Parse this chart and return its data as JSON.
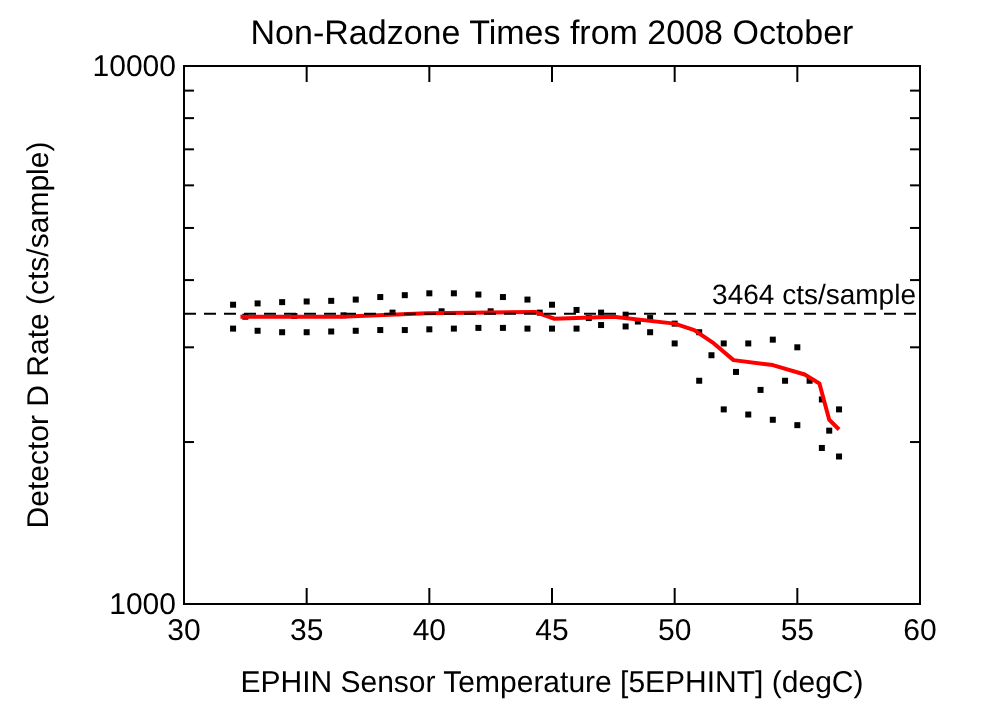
{
  "chart_data": {
    "type": "scatter",
    "title": "Non-Radzone Times from 2008 October",
    "xlabel": "EPHIN Sensor Temperature [5EPHINT] (degC)",
    "ylabel": "Detector D Rate (cts/sample)",
    "xlim": [
      30,
      60
    ],
    "xticks": [
      30,
      35,
      40,
      45,
      50,
      55,
      60
    ],
    "ylim": [
      1000,
      10000
    ],
    "log": true,
    "yticks": [
      1000,
      {
        "value": 2000,
        "label": null
      },
      {
        "value": 3000,
        "label": null
      },
      {
        "value": 4000,
        "label": null
      },
      {
        "value": 5000,
        "label": null
      },
      {
        "value": 6000,
        "label": null
      },
      {
        "value": 7000,
        "label": null
      },
      {
        "value": 8000,
        "label": null
      },
      {
        "value": 9000,
        "label": null
      },
      10000
    ],
    "marker": "square",
    "grid": false,
    "series": [
      {
        "color": "#000000",
        "x": [
          32,
          33,
          34,
          35,
          36,
          37,
          38,
          39,
          40,
          41,
          42,
          43,
          44,
          45,
          46,
          47,
          48,
          49,
          50,
          51,
          52,
          53,
          54,
          55,
          56,
          56.7,
          32,
          33,
          34,
          35,
          36,
          37,
          38,
          39,
          40,
          41,
          42,
          43,
          44,
          45,
          46,
          47,
          48,
          49,
          50,
          51,
          52,
          53,
          54,
          55,
          56,
          56.7,
          32.5,
          34.5,
          36.5,
          38.5,
          40.5,
          42.5,
          44.5,
          46.5,
          48.5,
          51.5,
          52.5,
          53.5,
          54.5,
          55.5,
          56.3
        ],
        "values": [
          3600,
          3620,
          3640,
          3650,
          3660,
          3680,
          3720,
          3750,
          3780,
          3780,
          3760,
          3720,
          3680,
          3600,
          3520,
          3480,
          3450,
          3400,
          3320,
          3200,
          3050,
          3050,
          3100,
          3000,
          2400,
          2300,
          3250,
          3220,
          3200,
          3200,
          3210,
          3220,
          3230,
          3230,
          3240,
          3250,
          3260,
          3260,
          3250,
          3250,
          3250,
          3300,
          3280,
          3200,
          3050,
          2600,
          2300,
          2250,
          2200,
          2150,
          1950,
          1880,
          3420,
          3430,
          3440,
          3480,
          3500,
          3500,
          3480,
          3400,
          3350,
          2900,
          2700,
          2500,
          2600,
          2600,
          2100
        ]
      },
      {
        "type": "line",
        "color": "#ff0000",
        "marker": "none",
        "x": [
          32.3,
          36.4,
          39.9,
          44.3,
          45.1,
          47.5,
          50.0,
          50.8,
          51.6,
          52.4,
          54.0,
          55.3,
          55.9,
          56.3,
          56.7
        ],
        "values": [
          3420,
          3420,
          3470,
          3490,
          3390,
          3420,
          3320,
          3230,
          3050,
          2840,
          2780,
          2670,
          2570,
          2200,
          2110
        ]
      }
    ],
    "ref_lines": [
      {
        "axis": "y",
        "value": 3464,
        "label": "3464 cts/sample",
        "color": "#000000",
        "line_style": "dashed"
      }
    ]
  }
}
